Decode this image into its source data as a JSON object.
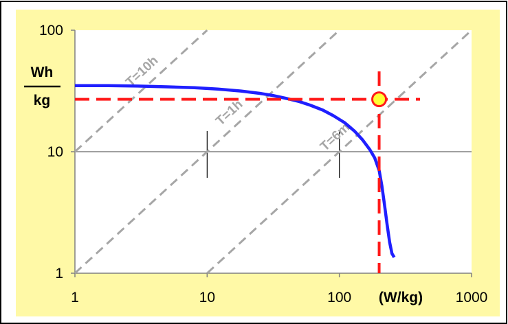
{
  "colors": {
    "panel_bg": "#fff9a6",
    "plot_bg": "#ffffff",
    "frame": "#000000",
    "curve": "#1f1fff",
    "marker_lines": "#ff1a1a",
    "marker_fill": "#ffff33",
    "marker_edge": "#ff1a1a",
    "time_lines": "#a6a6a6",
    "time_labels": "#a6a6a6",
    "grid": "#808080"
  },
  "chart_data": {
    "type": "line",
    "x_scale": "log",
    "y_scale": "log",
    "xlim": [
      1,
      1000
    ],
    "ylim": [
      1,
      100
    ],
    "x_ticks": [
      {
        "value": 1,
        "label": "1"
      },
      {
        "value": 10,
        "label": "10"
      },
      {
        "value": 100,
        "label": "100"
      },
      {
        "value": 1000,
        "label": "1000"
      }
    ],
    "y_ticks": [
      {
        "value": 1,
        "label": "1"
      },
      {
        "value": 10,
        "label": "10"
      },
      {
        "value": 100,
        "label": "100"
      }
    ],
    "xlabel": "(W/kg)",
    "ylabel_top": "Wh",
    "ylabel_bottom": "kg",
    "horizontal_gridlines": [
      10
    ],
    "minor_tick_marks_at_y10": [
      10,
      100
    ],
    "series": [
      {
        "x": [
          1.0,
          1.8,
          3.0,
          5.0,
          8.0,
          12,
          18,
          25,
          32,
          40,
          50,
          60,
          75,
          90,
          110,
          130,
          150,
          170,
          185,
          200,
          210,
          220,
          230,
          240,
          250,
          260
        ],
        "y": [
          35.0,
          35.0,
          34.7,
          34.2,
          33.6,
          32.8,
          31.6,
          30.2,
          28.9,
          27.4,
          25.8,
          24.2,
          22.0,
          19.8,
          17.3,
          14.8,
          12.5,
          10.4,
          8.9,
          7.0,
          5.2,
          3.6,
          2.5,
          1.8,
          1.45,
          1.35
        ]
      }
    ],
    "constant_time_lines": [
      {
        "label": "T=10h",
        "hours": 10
      },
      {
        "label": "T=1h",
        "hours": 1
      },
      {
        "label": "T=6m",
        "hours": 0.1
      }
    ],
    "highlight_point": {
      "x": 200,
      "y": 27
    }
  }
}
